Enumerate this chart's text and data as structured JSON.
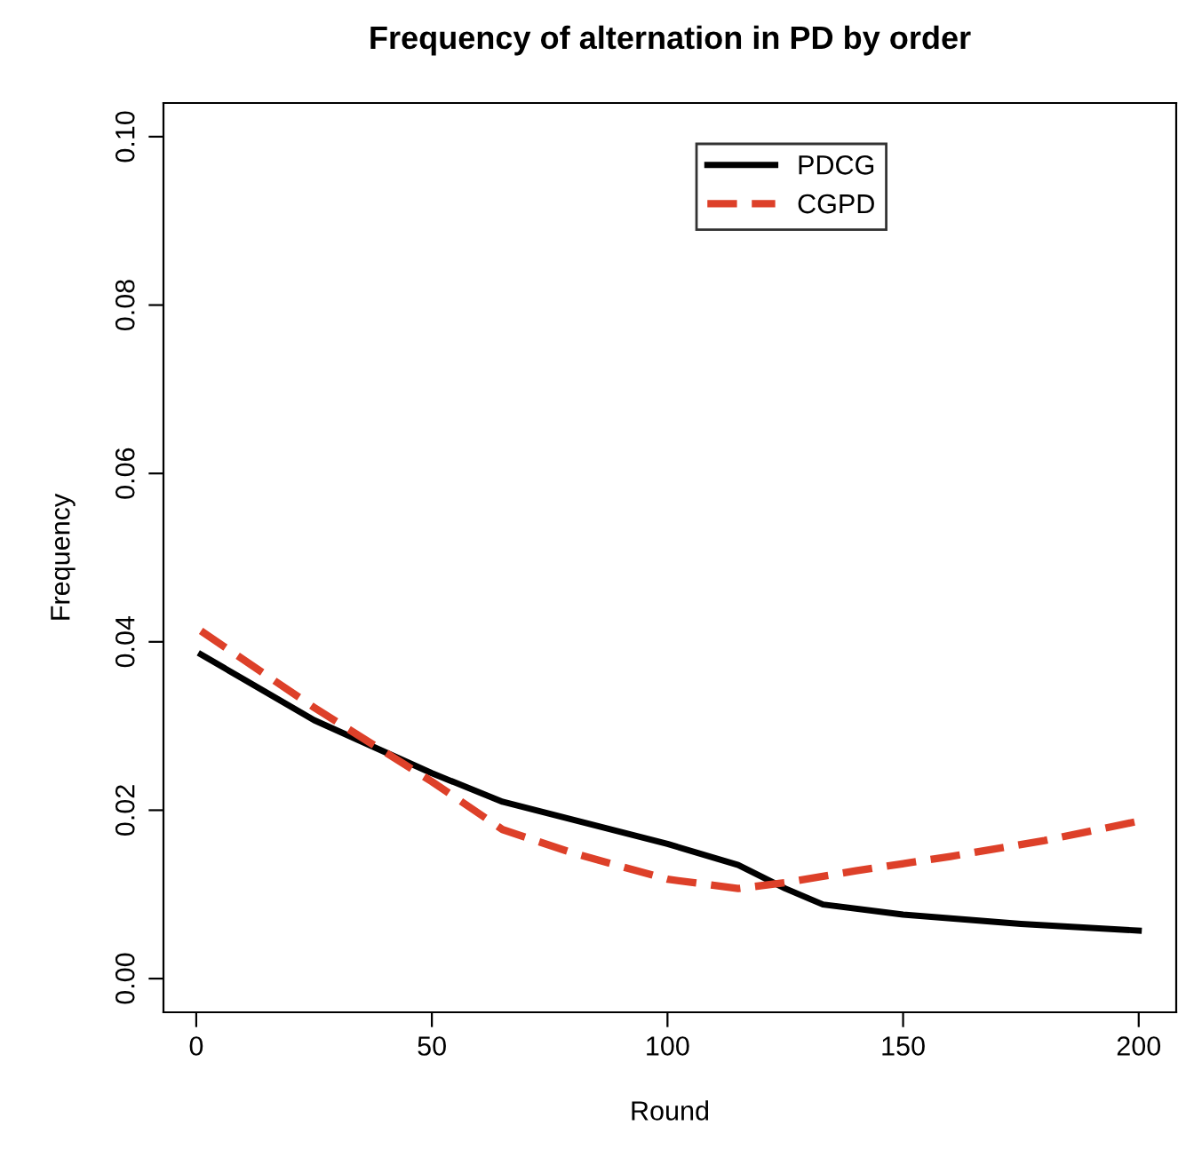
{
  "chart_data": {
    "type": "line",
    "title": "Frequency of alternation in PD by order",
    "xlabel": "Round",
    "ylabel": "Frequency",
    "xlim": [
      -6.96,
      207.96
    ],
    "xticks": [
      0,
      50,
      100,
      150,
      200
    ],
    "ylim": [
      -0.004,
      0.104
    ],
    "yticks": [
      {
        "value": 0,
        "label": "0.00"
      },
      {
        "value": 0.02,
        "label": "0.02"
      },
      {
        "value": 0.04,
        "label": "0.04"
      },
      {
        "value": 0.06,
        "label": "0.06"
      },
      {
        "value": 0.08,
        "label": "0.08"
      },
      {
        "value": 0.1,
        "label": "0.10"
      }
    ],
    "legend": "top",
    "grid": false,
    "series": [
      {
        "name": "PDCG",
        "color": "#000000",
        "line_style": "solid",
        "x": [
          1,
          25,
          50,
          65,
          100,
          115,
          125,
          133,
          150,
          175,
          200
        ],
        "values": [
          0.0385,
          0.0307,
          0.0244,
          0.021,
          0.016,
          0.0135,
          0.0107,
          0.0088,
          0.0076,
          0.0065,
          0.0057
        ]
      },
      {
        "name": "CGPD",
        "color": "#dd4029",
        "line_style": "dashed",
        "x": [
          1,
          25,
          50,
          65,
          80,
          100,
          115,
          125,
          140,
          160,
          180,
          200
        ],
        "values": [
          0.0413,
          0.0322,
          0.0234,
          0.0177,
          0.0149,
          0.0118,
          0.0107,
          0.0114,
          0.0128,
          0.0145,
          0.0164,
          0.0187
        ]
      }
    ]
  }
}
